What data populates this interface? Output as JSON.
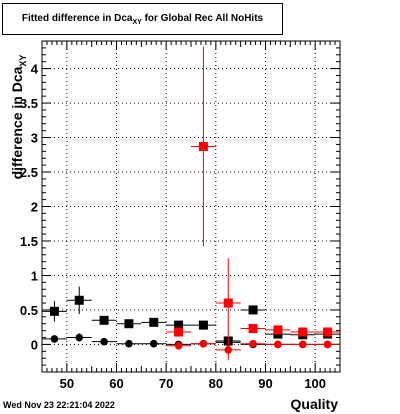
{
  "title": {
    "main": "Fitted difference in Dca",
    "sub": "XY",
    "rest": " for Global Rec All NoHits"
  },
  "ylabel": {
    "main": "difference in Dca",
    "sub": "XY"
  },
  "xlabel": "Quality",
  "footer": "Wed Nov 23 22:21:04 2022",
  "colors": {
    "black": "#000000",
    "red": "#ff0000",
    "darkred": "#cc0000",
    "grid": "#000000"
  },
  "chart_data": {
    "type": "scatter",
    "xlim": [
      45,
      105
    ],
    "ylim": [
      -0.4,
      4.4
    ],
    "xticks": [
      50,
      60,
      70,
      80,
      90,
      100
    ],
    "xtick_labels": [
      "50",
      "60",
      "70",
      "80",
      "90",
      "100"
    ],
    "yticks": [
      0,
      0.5,
      1,
      1.5,
      2,
      2.5,
      3,
      3.5,
      4
    ],
    "ytick_labels": [
      "0",
      "0.5",
      "1",
      "1.5",
      "2",
      "2.5",
      "3",
      "3.5",
      "4"
    ],
    "grid": true,
    "series": [
      {
        "marker": "square",
        "color": "#000000",
        "points": [
          {
            "x": 47.5,
            "y": 0.48,
            "xerr": 2.5,
            "yerr": 0.15
          },
          {
            "x": 52.5,
            "y": 0.64,
            "xerr": 2.5,
            "yerr": 0.2
          },
          {
            "x": 57.5,
            "y": 0.35,
            "xerr": 2.5,
            "yerr": 0.05
          },
          {
            "x": 62.5,
            "y": 0.3,
            "xerr": 2.5,
            "yerr": 0.03
          },
          {
            "x": 67.5,
            "y": 0.32,
            "xerr": 2.5,
            "yerr": 0.03
          },
          {
            "x": 72.5,
            "y": 0.28,
            "xerr": 2.5,
            "yerr": 0.03
          },
          {
            "x": 77.5,
            "y": 0.28,
            "xerr": 2.5,
            "yerr": 0.03
          },
          {
            "x": 82.5,
            "y": 0.05,
            "xerr": 2.5,
            "yerr": 0.02
          },
          {
            "x": 87.5,
            "y": 0.5,
            "xerr": 2.5,
            "yerr": 0.03
          },
          {
            "x": 92.5,
            "y": 0.15,
            "xerr": 2.5,
            "yerr": 0.02
          },
          {
            "x": 97.5,
            "y": 0.14,
            "xerr": 2.5,
            "yerr": 0.02
          },
          {
            "x": 102.5,
            "y": 0.15,
            "xerr": 2.5,
            "yerr": 0.02
          }
        ]
      },
      {
        "marker": "circle",
        "color": "#000000",
        "points": [
          {
            "x": 47.5,
            "y": 0.08,
            "xerr": 2.5,
            "yerr": 0.05
          },
          {
            "x": 52.5,
            "y": 0.1,
            "xerr": 2.5,
            "yerr": 0.06
          },
          {
            "x": 57.5,
            "y": 0.04,
            "xerr": 2.5,
            "yerr": 0.02
          },
          {
            "x": 62.5,
            "y": 0.01,
            "xerr": 2.5,
            "yerr": 0.01
          },
          {
            "x": 67.5,
            "y": 0.01,
            "xerr": 2.5,
            "yerr": 0.01
          },
          {
            "x": 72.5,
            "y": 0.0,
            "xerr": 2.5,
            "yerr": 0.01
          },
          {
            "x": 77.5,
            "y": 0.01,
            "xerr": 2.5,
            "yerr": 0.01
          },
          {
            "x": 82.5,
            "y": 0.03,
            "xerr": 2.5,
            "yerr": 0.01
          },
          {
            "x": 87.5,
            "y": 0.0,
            "xerr": 2.5,
            "yerr": 0.01
          },
          {
            "x": 92.5,
            "y": 0.0,
            "xerr": 2.5,
            "yerr": 0.01
          },
          {
            "x": 97.5,
            "y": 0.0,
            "xerr": 2.5,
            "yerr": 0.01
          },
          {
            "x": 102.5,
            "y": 0.0,
            "xerr": 2.5,
            "yerr": 0.01
          }
        ]
      },
      {
        "marker": "square",
        "color": "#ff0000",
        "points": [
          {
            "x": 72.5,
            "y": 0.18,
            "xerr": 2.5,
            "yerr": 0.05
          },
          {
            "x": 77.5,
            "y": 2.87,
            "xerr": 2.5,
            "yerr": 1.45
          },
          {
            "x": 82.5,
            "y": 0.6,
            "xerr": 2.5,
            "yerr": 0.65
          },
          {
            "x": 87.5,
            "y": 0.23,
            "xerr": 2.5,
            "yerr": 0.04
          },
          {
            "x": 92.5,
            "y": 0.21,
            "xerr": 2.5,
            "yerr": 0.03
          },
          {
            "x": 97.5,
            "y": 0.18,
            "xerr": 2.5,
            "yerr": 0.03
          },
          {
            "x": 102.5,
            "y": 0.18,
            "xerr": 2.5,
            "yerr": 0.03
          }
        ]
      },
      {
        "marker": "circle",
        "color": "#ff0000",
        "points": [
          {
            "x": 72.5,
            "y": -0.02,
            "xerr": 2.5,
            "yerr": 0.02
          },
          {
            "x": 77.5,
            "y": 0.01,
            "xerr": 2.5,
            "yerr": 0.02
          },
          {
            "x": 82.5,
            "y": -0.08,
            "xerr": 2.5,
            "yerr": 0.15
          },
          {
            "x": 87.5,
            "y": 0.01,
            "xerr": 2.5,
            "yerr": 0.02
          },
          {
            "x": 92.5,
            "y": 0.0,
            "xerr": 2.5,
            "yerr": 0.01
          },
          {
            "x": 97.5,
            "y": 0.0,
            "xerr": 2.5,
            "yerr": 0.01
          },
          {
            "x": 102.5,
            "y": 0.0,
            "xerr": 2.5,
            "yerr": 0.01
          }
        ]
      }
    ]
  }
}
